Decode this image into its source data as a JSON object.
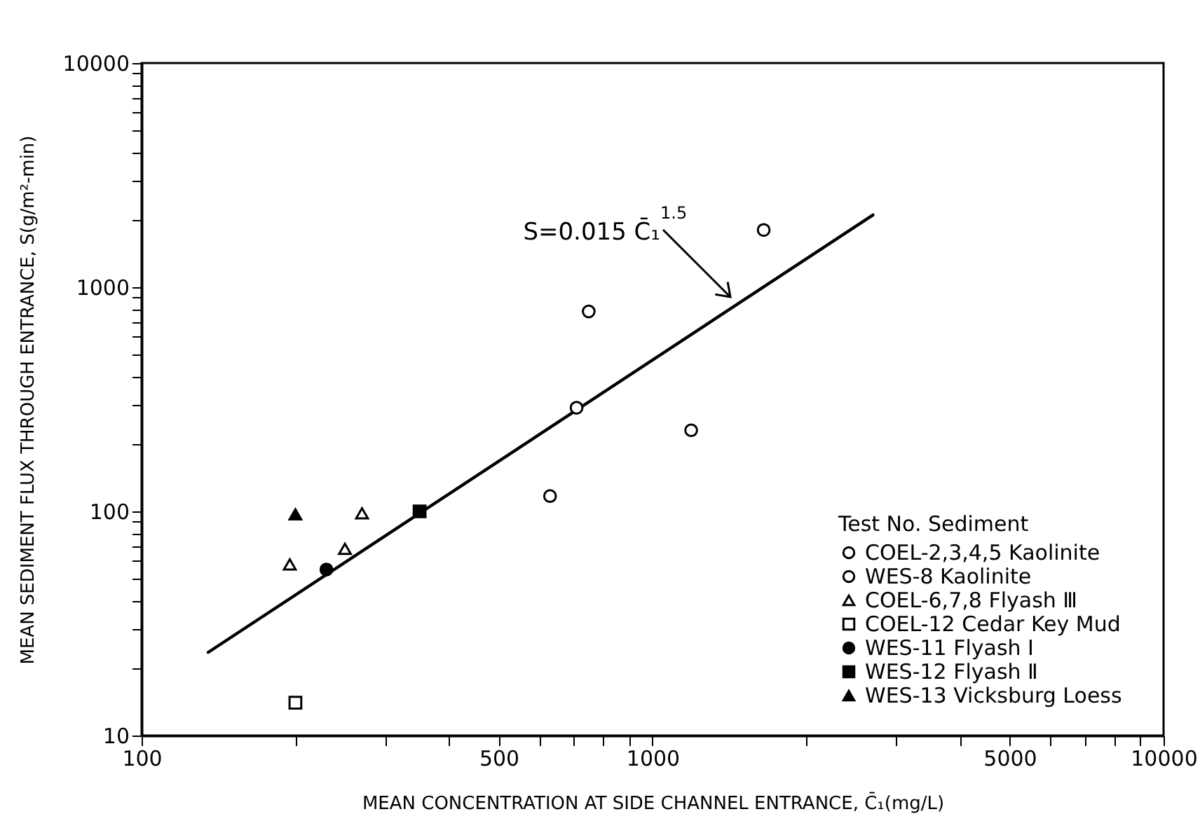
{
  "chart_data": {
    "type": "scatter",
    "xlabel": "MEAN CONCENTRATION AT SIDE CHANNEL ENTRANCE, C̄₁(mg/L)",
    "ylabel": "MEAN SEDIMENT FLUX THROUGH ENTRANCE, S(g/m²-min)",
    "log": "xy",
    "xlim": [
      100,
      10000
    ],
    "ylim": [
      10,
      10000
    ],
    "xticks": [
      100,
      {
        "value": 200,
        "label": null
      },
      {
        "value": 300,
        "label": null
      },
      {
        "value": 400,
        "label": null
      },
      500,
      {
        "value": 600,
        "label": null
      },
      {
        "value": 700,
        "label": null
      },
      {
        "value": 800,
        "label": null
      },
      {
        "value": 900,
        "label": null
      },
      1000,
      {
        "value": 2000,
        "label": null
      },
      {
        "value": 3000,
        "label": null
      },
      {
        "value": 4000,
        "label": null
      },
      5000,
      {
        "value": 6000,
        "label": null
      },
      {
        "value": 7000,
        "label": null
      },
      {
        "value": 8000,
        "label": null
      },
      {
        "value": 9000,
        "label": null
      },
      10000
    ],
    "yticks": [
      10,
      {
        "value": 20,
        "label": null
      },
      {
        "value": 30,
        "label": null
      },
      {
        "value": 40,
        "label": null
      },
      {
        "value": 50,
        "label": null
      },
      {
        "value": 60,
        "label": null
      },
      {
        "value": 70,
        "label": null
      },
      {
        "value": 80,
        "label": null
      },
      {
        "value": 90,
        "label": null
      },
      100,
      {
        "value": 200,
        "label": null
      },
      {
        "value": 300,
        "label": null
      },
      {
        "value": 400,
        "label": null
      },
      {
        "value": 500,
        "label": null
      },
      {
        "value": 600,
        "label": null
      },
      {
        "value": 700,
        "label": null
      },
      {
        "value": 800,
        "label": null
      },
      {
        "value": 900,
        "label": null
      },
      1000,
      {
        "value": 2000,
        "label": null
      },
      {
        "value": 3000,
        "label": null
      },
      {
        "value": 4000,
        "label": null
      },
      {
        "value": 5000,
        "label": null
      },
      {
        "value": 6000,
        "label": null
      },
      {
        "value": 7000,
        "label": null
      },
      {
        "value": 8000,
        "label": null
      },
      {
        "value": 9000,
        "label": null
      },
      10000
    ],
    "legend": "bottom right",
    "legend_title": "Test No.   Sediment",
    "annotations": [
      "S=0.015 C̄₁$^{1.5}$"
    ],
    "series": [
      {
        "name": "COEL-2,3,4,5   Kaolinite",
        "color": "#ffffff",
        "marker": "circle",
        "x": [
          1650,
          750,
          710,
          630
        ],
        "values": [
          1800,
          780,
          290,
          117
        ]
      },
      {
        "name": "WES-8   Kaolinite",
        "color": "#ffffff",
        "marker": "circle",
        "x": [
          1190
        ],
        "values": [
          230
        ]
      },
      {
        "name": "COEL-6,7,8   Flyash Ⅲ",
        "color": "#ffffff",
        "marker": "triangle",
        "x": [
          195,
          250,
          270
        ],
        "values": [
          58,
          68,
          98
        ]
      },
      {
        "name": "COEL-12   Cedar Key Mud",
        "color": "#ffffff",
        "marker": "square",
        "x": [
          200
        ],
        "values": [
          14
        ]
      },
      {
        "name": "WES-11   Flyash Ⅰ",
        "color": "#000000",
        "marker": "circle",
        "x": [
          230
        ],
        "values": [
          55
        ]
      },
      {
        "name": "WES-12   Flyash Ⅱ",
        "color": "#000000",
        "marker": "square",
        "x": [
          350
        ],
        "values": [
          100
        ]
      },
      {
        "name": "WES-13   Vicksburg Loess",
        "color": "#000000",
        "marker": "triangle",
        "x": [
          200
        ],
        "values": [
          97
        ]
      },
      {
        "type": "line",
        "color": "#000000",
        "line_style": "solid",
        "x": [
          135,
          2700
        ],
        "values": [
          23.5,
          2100
        ]
      }
    ]
  }
}
